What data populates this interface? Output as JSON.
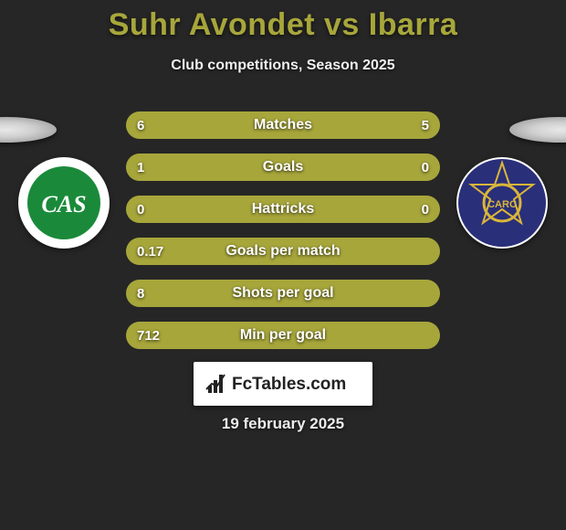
{
  "title_color": "#a7a63b",
  "player_a": "Suhr Avondet",
  "vs": "vs",
  "player_b": "Ibarra",
  "subtitle": "Club competitions, Season 2025",
  "left_color": "#a7a63b",
  "right_color": "#a7a63b",
  "track_color": "#3b3b3b",
  "stats": [
    {
      "label": "Matches",
      "left_val": "6",
      "right_val": "5",
      "left_pct": 54.5,
      "right_pct": 45.5
    },
    {
      "label": "Goals",
      "left_val": "1",
      "right_val": "0",
      "left_pct": 80.0,
      "right_pct": 20.0
    },
    {
      "label": "Hattricks",
      "left_val": "0",
      "right_val": "0",
      "left_pct": 50.0,
      "right_pct": 50.0
    },
    {
      "label": "Goals per match",
      "left_val": "0.17",
      "right_val": "",
      "left_pct": 100,
      "right_pct": 0
    },
    {
      "label": "Shots per goal",
      "left_val": "8",
      "right_val": "",
      "left_pct": 100,
      "right_pct": 0
    },
    {
      "label": "Min per goal",
      "left_val": "712",
      "right_val": "",
      "left_pct": 100,
      "right_pct": 0
    }
  ],
  "brand": "FcTables.com",
  "date": "19 february 2025",
  "crest_left": {
    "bg_outer": "#ffffff",
    "bg_inner": "#1a8a3a",
    "letters": "CAS",
    "text_color": "#ffffff"
  },
  "crest_right": {
    "bg": "#2a2f7a",
    "accent": "#d9b63a",
    "letters": "CARC",
    "text_color": "#d9b63a"
  }
}
